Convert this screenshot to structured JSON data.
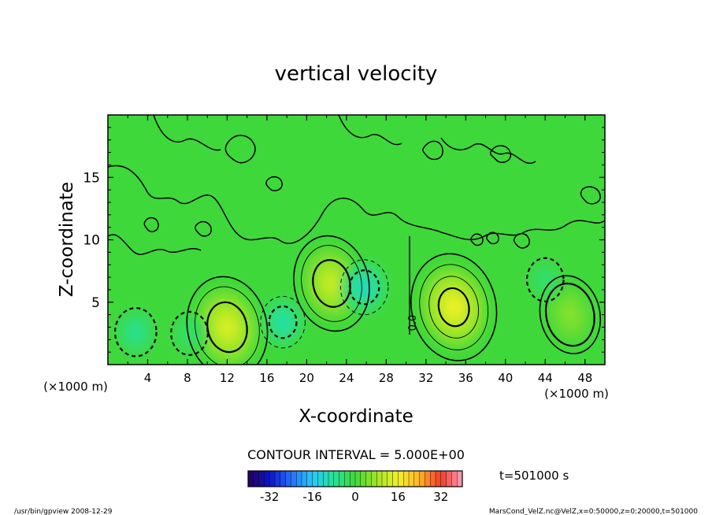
{
  "chart_data": {
    "type": "heatmap",
    "title": "vertical velocity",
    "xlabel": "X-coordinate",
    "ylabel": "Z-coordinate",
    "x_ticks": [
      "4",
      "8",
      "12",
      "16",
      "20",
      "24",
      "28",
      "32",
      "36",
      "40",
      "44",
      "48"
    ],
    "x_tick_values": [
      4,
      8,
      12,
      16,
      20,
      24,
      28,
      32,
      36,
      40,
      44,
      48
    ],
    "y_ticks": [
      "5",
      "10",
      "15"
    ],
    "y_tick_values": [
      5,
      10,
      15
    ],
    "xlim": [
      0,
      50
    ],
    "ylim": [
      0,
      20
    ],
    "x_unit_left": "(×1000 m)",
    "x_unit_right": "(×1000 m)",
    "contour_interval_text": "CONTOUR INTERVAL = 5.000E+00",
    "contour_zero_label": "0.0",
    "time_label": "t=501000 s",
    "colorbar": {
      "min": -40,
      "max": 40,
      "ticks": [
        "-32",
        "-16",
        "0",
        "16",
        "32"
      ],
      "tick_values": [
        -32,
        -16,
        0,
        16,
        32
      ]
    },
    "features": [
      {
        "name": "updraft",
        "x": 12.0,
        "z": 3.0,
        "value": 14
      },
      {
        "name": "updraft",
        "x": 22.5,
        "z": 6.5,
        "value": 12
      },
      {
        "name": "updraft",
        "x": 34.8,
        "z": 4.6,
        "value": 16
      },
      {
        "name": "updraft",
        "x": 46.5,
        "z": 4.0,
        "value": 6
      },
      {
        "name": "downdraft",
        "x": 2.8,
        "z": 2.6,
        "value": -8
      },
      {
        "name": "downdraft",
        "x": 8.2,
        "z": 2.5,
        "value": -5
      },
      {
        "name": "downdraft",
        "x": 17.6,
        "z": 3.4,
        "value": -10
      },
      {
        "name": "downdraft",
        "x": 25.8,
        "z": 6.2,
        "value": -12
      },
      {
        "name": "downdraft",
        "x": 44.0,
        "z": 6.8,
        "value": -5
      }
    ]
  },
  "footer": {
    "left": "/usr/bin/gpview   2008-12-29",
    "right": "MarsCond_VelZ.nc@VelZ,x=0:50000,z=0:20000,t=501000"
  }
}
